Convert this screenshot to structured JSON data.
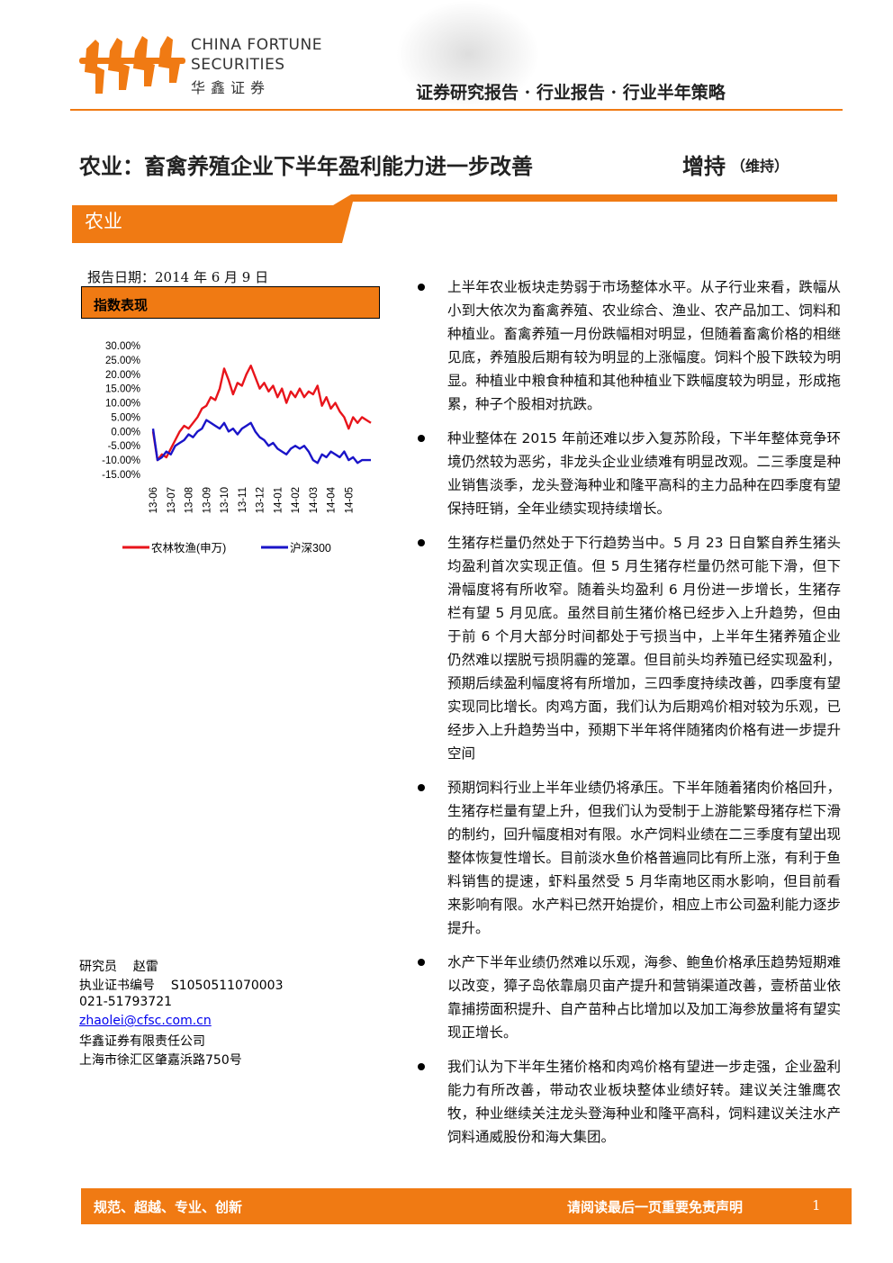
{
  "header": {
    "brand_en_1": "CHINA FORTUNE",
    "brand_en_2": "SECURITIES",
    "brand_cn": "华鑫证券",
    "report_type": "证券研究报告 · 行业报告 · 行业半年策略"
  },
  "title": "农业：畜禽养殖企业下半年盈利能力进一步改善",
  "rating": "增持",
  "rating_note": "（维持）",
  "sector": "农业",
  "report_date": "报告日期：2014 年 6 月 9 日",
  "chart_box_title": "指数表现",
  "chart_data": {
    "type": "line",
    "categories": [
      "13-06",
      null,
      null,
      null,
      "13-07",
      null,
      null,
      null,
      "13-08",
      null,
      null,
      null,
      "13-09",
      null,
      null,
      null,
      "13-10",
      null,
      null,
      null,
      "13-11",
      null,
      null,
      null,
      "13-12",
      null,
      null,
      null,
      "14-01",
      null,
      null,
      null,
      "14-02",
      null,
      null,
      null,
      "14-03",
      null,
      null,
      null,
      "14-04",
      null,
      null,
      null,
      "14-05",
      null,
      null,
      null,
      null,
      null
    ],
    "series": [
      {
        "name": "农林牧渔(申万)",
        "color": "#e8141b",
        "values": [
          0,
          -10,
          -8,
          -9,
          -6,
          -3,
          0,
          2,
          1,
          3,
          5,
          8,
          9,
          12,
          11,
          15,
          22,
          18,
          13,
          17,
          16,
          20,
          23,
          19,
          15,
          17,
          14,
          16,
          12,
          15,
          10,
          14,
          12,
          15,
          12,
          14,
          13,
          16,
          9,
          12,
          8,
          10,
          7,
          5,
          1,
          5,
          3,
          5,
          4,
          3
        ]
      },
      {
        "name": "沪深300",
        "color": "#1a14c8",
        "values": [
          1,
          -10,
          -9,
          -7,
          -8,
          -5,
          -4,
          -3,
          -1,
          -2,
          0,
          1,
          4,
          3,
          2,
          1,
          3,
          0,
          1,
          -1,
          1,
          2,
          3,
          0,
          -2,
          -3,
          -5,
          -4,
          -6,
          -7,
          -8,
          -6,
          -5,
          -6,
          -5,
          -7,
          -10,
          -11,
          -8,
          -9,
          -7,
          -8,
          -9,
          -7,
          -10,
          -9,
          -11,
          -10,
          -10,
          -10
        ]
      }
    ],
    "ylim": [
      -15,
      30
    ],
    "yticks": [
      {
        "value": 30,
        "label": "30.00%"
      },
      {
        "value": 25,
        "label": "25.00%"
      },
      {
        "value": 20,
        "label": "20.00%"
      },
      {
        "value": 15,
        "label": "15.00%"
      },
      {
        "value": 10,
        "label": "10.00%"
      },
      {
        "value": 5,
        "label": "5.00%"
      },
      {
        "value": 0,
        "label": "0.00%"
      },
      {
        "value": -5,
        "label": "-5.00%"
      },
      {
        "value": -10,
        "label": "-10.00%"
      },
      {
        "value": -15,
        "label": "-15.00%"
      }
    ],
    "grid": false
  },
  "bullets": [
    "上半年农业板块走势弱于市场整体水平。从子行业来看，跌幅从小到大依次为畜禽养殖、农业综合、渔业、农产品加工、饲料和种植业。畜禽养殖一月份跌幅相对明显，但随着畜禽价格的相继见底，养殖股后期有较为明显的上涨幅度。饲料个股下跌较为明显。种植业中粮食种植和其他种植业下跌幅度较为明显，形成拖累，种子个股相对抗跌。",
    "种业整体在 2015 年前还难以步入复苏阶段，下半年整体竞争环境仍然较为恶劣，非龙头企业业绩难有明显改观。二三季度是种业销售淡季，龙头登海种业和隆平高科的主力品种在四季度有望保持旺销，全年业绩实现持续增长。",
    "生猪存栏量仍然处于下行趋势当中。5 月 23 日自繁自养生猪头均盈利首次实现正值。但 5 月生猪存栏量仍然可能下滑，但下滑幅度将有所收窄。随着头均盈利 6 月份进一步增长，生猪存栏有望 5 月见底。虽然目前生猪价格已经步入上升趋势，但由于前 6 个月大部分时间都处于亏损当中，上半年生猪养殖企业仍然难以摆脱亏损阴霾的笼罩。但目前头均养殖已经实现盈利，预期后续盈利幅度将有所增加，三四季度持续改善，四季度有望实现同比增长。肉鸡方面，我们认为后期鸡价相对较为乐观，已经步入上升趋势当中，预期下半年将伴随猪肉价格有进一步提升空间",
    "预期饲料行业上半年业绩仍将承压。下半年随着猪肉价格回升，生猪存栏量有望上升，但我们认为受制于上游能繁母猪存栏下滑的制约，回升幅度相对有限。水产饲料业绩在二三季度有望出现整体恢复性增长。目前淡水鱼价格普遍同比有所上涨，有利于鱼料销售的提速，虾料虽然受 5 月华南地区雨水影响，但目前看来影响有限。水产料已然开始提价，相应上市公司盈利能力逐步提升。",
    "水产下半年业绩仍然难以乐观，海参、鲍鱼价格承压趋势短期难以改变，獐子岛依靠扇贝亩产提升和营销渠道改善，壹桥苗业依靠捕捞面积提升、自产苗种占比增加以及加工海参放量将有望实现正增长。",
    "我们认为下半年生猪价格和肉鸡价格有望进一步走强，企业盈利能力有所改善，带动农业板块整体业绩好转。建议关注雏鹰农牧，种业继续关注龙头登海种业和隆平高科，饲料建议关注水产饲料通威股份和海大集团。"
  ],
  "analyst": {
    "role": "研究员",
    "name": "赵雷",
    "license_label": "执业证书编号",
    "license": "S1050511070003",
    "phone": "021-51793721",
    "email": "zhaolei@cfsc.com.cn",
    "company": "华鑫证券有限责任公司",
    "address": "上海市徐汇区肇嘉浜路750号"
  },
  "footer": {
    "motto": "规范、超越、专业、创新",
    "disclaimer": "请阅读最后一页重要免责声明",
    "page": "1"
  }
}
